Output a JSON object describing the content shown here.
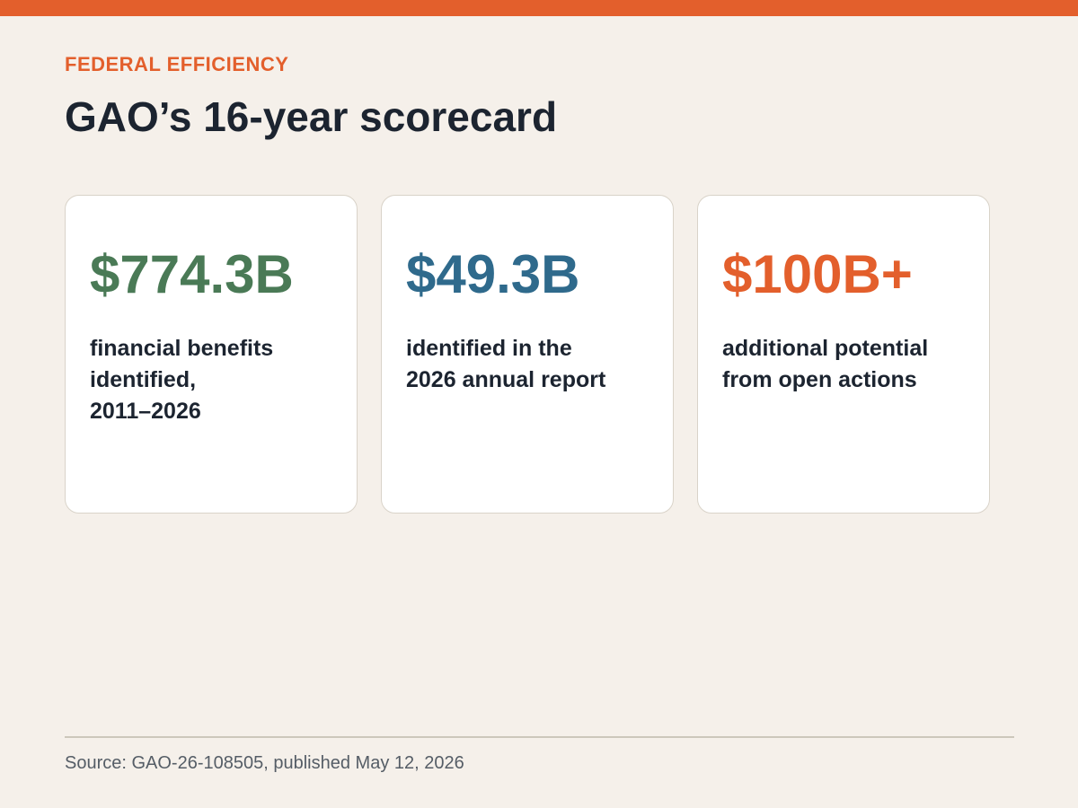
{
  "header": {
    "eyebrow": "FEDERAL EFFICIENCY",
    "title": "GAO’s 16-year scorecard"
  },
  "colors": {
    "accent": "#e35f2c",
    "green": "#4a7a56",
    "blue": "#2f6a8c",
    "orange": "#e35f2c",
    "text_dark": "#1c2430",
    "background": "#f5f0ea"
  },
  "cards": [
    {
      "value": "$774.3B",
      "description": "financial benefits\nidentified,\n2011–2026",
      "color": "#4a7a56"
    },
    {
      "value": "$49.3B",
      "description": "identified in the\n2026 annual report",
      "color": "#2f6a8c"
    },
    {
      "value": "$100B+",
      "description": "additional potential\nfrom open actions",
      "color": "#e35f2c"
    }
  ],
  "footer": {
    "source": "Source: GAO-26-108505, published May 12, 2026"
  }
}
